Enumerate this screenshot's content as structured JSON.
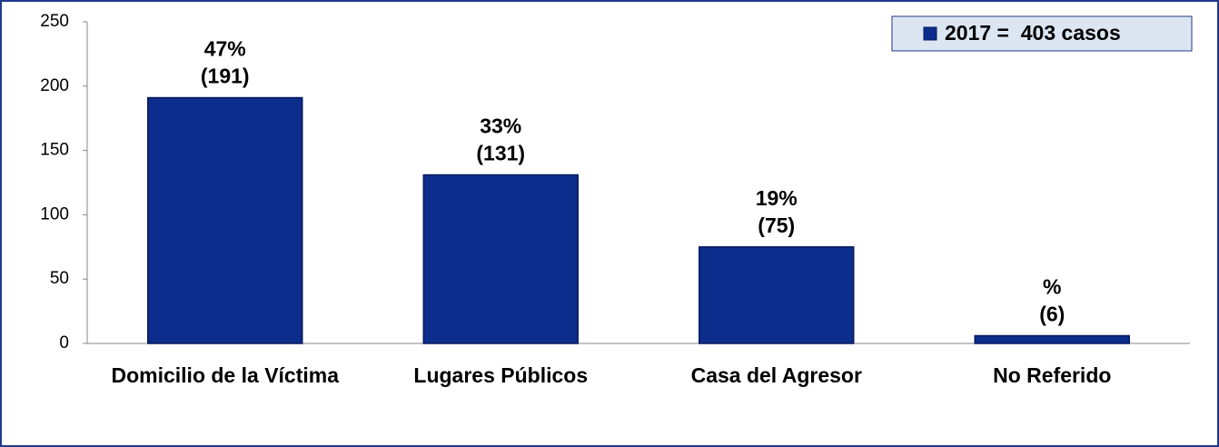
{
  "chart_data": {
    "type": "bar",
    "categories": [
      "Domicilio de la Víctima",
      "Lugares Públicos",
      "Casa del Agresor",
      "No Referido"
    ],
    "series": [
      {
        "name": "2017 =  403 casos",
        "color": "#0c2d8c",
        "values": [
          191,
          131,
          75,
          6
        ],
        "value_labels": [
          "(191)",
          "(131)",
          "(75)",
          "(6)"
        ],
        "percent_labels": [
          "47%",
          "33%",
          "19%",
          "%"
        ]
      }
    ],
    "ylim": [
      0,
      250
    ],
    "yticks": [
      0,
      50,
      100,
      150,
      200,
      250
    ],
    "grid": false,
    "legend": "top-right"
  }
}
